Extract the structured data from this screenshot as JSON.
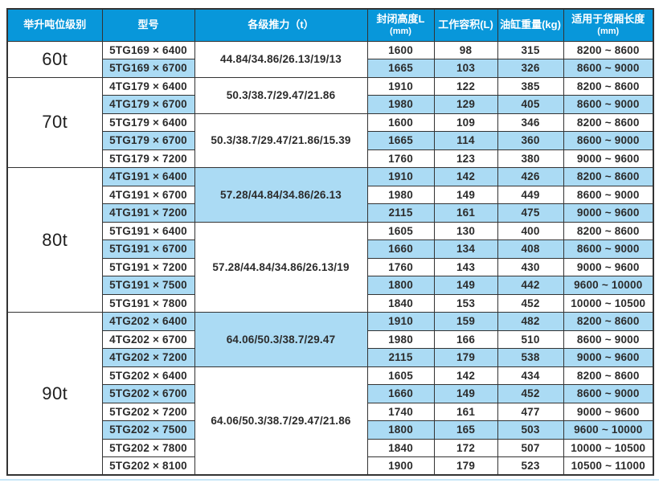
{
  "colors": {
    "header_bg": "#0897da",
    "header_text": "#ffffff",
    "row_highlight": "#abdbf4",
    "border": "#333333",
    "body_text": "#2b2b2b",
    "bottom_accent_line": "#c6e6f7"
  },
  "table": {
    "columns": [
      {
        "id": "tonnage",
        "label": "举升吨位级别",
        "sub": ""
      },
      {
        "id": "model",
        "label": "型号",
        "sub": ""
      },
      {
        "id": "thrust",
        "label": "各级推力（t）",
        "sub": ""
      },
      {
        "id": "height",
        "label": "封闭高度L",
        "sub": "(mm)"
      },
      {
        "id": "volume",
        "label": "工作容积(L)",
        "sub": ""
      },
      {
        "id": "weight",
        "label": "油缸重量(kg)",
        "sub": ""
      },
      {
        "id": "box",
        "label": "适用于货厢长度",
        "sub": "(mm)"
      }
    ],
    "groups": [
      {
        "tonnage": "60t",
        "subgroups": [
          {
            "thrust": "44.84/34.86/26.13/19/13",
            "thrust_highlight": false,
            "rows": [
              {
                "model": "5TG169 × 6400",
                "height": "1600",
                "volume": "98",
                "weight": "315",
                "box": "8200 ~ 8600",
                "highlight": false
              },
              {
                "model": "5TG169 × 6700",
                "height": "1665",
                "volume": "103",
                "weight": "326",
                "box": "8600 ~ 9000",
                "highlight": true
              }
            ]
          }
        ]
      },
      {
        "tonnage": "70t",
        "subgroups": [
          {
            "thrust": "50.3/38.7/29.47/21.86",
            "thrust_highlight": false,
            "rows": [
              {
                "model": "4TG179 × 6400",
                "height": "1910",
                "volume": "122",
                "weight": "385",
                "box": "8200 ~ 8600",
                "highlight": false
              },
              {
                "model": "4TG179 × 6700",
                "height": "1980",
                "volume": "129",
                "weight": "405",
                "box": "8600 ~ 9000",
                "highlight": true
              }
            ]
          },
          {
            "thrust": "50.3/38.7/29.47/21.86/15.39",
            "thrust_highlight": false,
            "rows": [
              {
                "model": "5TG179 × 6400",
                "height": "1600",
                "volume": "109",
                "weight": "346",
                "box": "8200 ~ 8600",
                "highlight": false
              },
              {
                "model": "5TG179 × 6700",
                "height": "1665",
                "volume": "114",
                "weight": "360",
                "box": "8600 ~ 9000",
                "highlight": true
              },
              {
                "model": "5TG179 × 7200",
                "height": "1760",
                "volume": "123",
                "weight": "380",
                "box": "9000 ~ 9600",
                "highlight": false
              }
            ]
          }
        ]
      },
      {
        "tonnage": "80t",
        "subgroups": [
          {
            "thrust": "57.28/44.84/34.86/26.13",
            "thrust_highlight": true,
            "rows": [
              {
                "model": "4TG191 × 6400",
                "height": "1910",
                "volume": "142",
                "weight": "426",
                "box": "8200 ~ 8600",
                "highlight": true
              },
              {
                "model": "4TG191 × 6700",
                "height": "1980",
                "volume": "149",
                "weight": "449",
                "box": "8600 ~ 9000",
                "highlight": false
              },
              {
                "model": "4TG191 × 7200",
                "height": "2115",
                "volume": "161",
                "weight": "475",
                "box": "9000 ~ 9600",
                "highlight": true
              }
            ]
          },
          {
            "thrust": "57.28/44.84/34.86/26.13/19",
            "thrust_highlight": false,
            "rows": [
              {
                "model": "5TG191 × 6400",
                "height": "1605",
                "volume": "130",
                "weight": "400",
                "box": "8200 ~ 8600",
                "highlight": false
              },
              {
                "model": "5TG191 × 6700",
                "height": "1660",
                "volume": "134",
                "weight": "408",
                "box": "8600 ~ 9000",
                "highlight": true
              },
              {
                "model": "5TG191 × 7200",
                "height": "1760",
                "volume": "143",
                "weight": "430",
                "box": "9000 ~ 9600",
                "highlight": false
              },
              {
                "model": "5TG191 × 7500",
                "height": "1800",
                "volume": "149",
                "weight": "442",
                "box": "9600 ~ 10000",
                "highlight": true
              },
              {
                "model": "5TG191 × 7800",
                "height": "1840",
                "volume": "153",
                "weight": "452",
                "box": "10000 ~ 10500",
                "highlight": false
              }
            ]
          }
        ]
      },
      {
        "tonnage": "90t",
        "subgroups": [
          {
            "thrust": "64.06/50.3/38.7/29.47",
            "thrust_highlight": true,
            "rows": [
              {
                "model": "4TG202 × 6400",
                "height": "1910",
                "volume": "159",
                "weight": "482",
                "box": "8200 ~ 8600",
                "highlight": true
              },
              {
                "model": "4TG202 × 6700",
                "height": "1980",
                "volume": "166",
                "weight": "510",
                "box": "8600 ~ 9000",
                "highlight": false
              },
              {
                "model": "4TG202 × 7200",
                "height": "2115",
                "volume": "179",
                "weight": "538",
                "box": "9000 ~ 9600",
                "highlight": true
              }
            ]
          },
          {
            "thrust": "64.06/50.3/38.7/29.47/21.86",
            "thrust_highlight": false,
            "rows": [
              {
                "model": "5TG202 × 6400",
                "height": "1605",
                "volume": "142",
                "weight": "434",
                "box": "8200 ~ 8600",
                "highlight": false
              },
              {
                "model": "5TG202 × 6700",
                "height": "1660",
                "volume": "149",
                "weight": "452",
                "box": "8600 ~ 9000",
                "highlight": true
              },
              {
                "model": "5TG202 × 7200",
                "height": "1740",
                "volume": "161",
                "weight": "477",
                "box": "9000 ~ 9600",
                "highlight": false
              },
              {
                "model": "5TG202 × 7500",
                "height": "1800",
                "volume": "165",
                "weight": "503",
                "box": "9600 ~ 10000",
                "highlight": true
              },
              {
                "model": "5TG202 × 7800",
                "height": "1840",
                "volume": "172",
                "weight": "507",
                "box": "10000 ~ 10500",
                "highlight": false
              },
              {
                "model": "5TG202 × 8100",
                "height": "1900",
                "volume": "179",
                "weight": "523",
                "box": "10500 ~ 11000",
                "highlight": false
              }
            ]
          }
        ]
      }
    ]
  }
}
